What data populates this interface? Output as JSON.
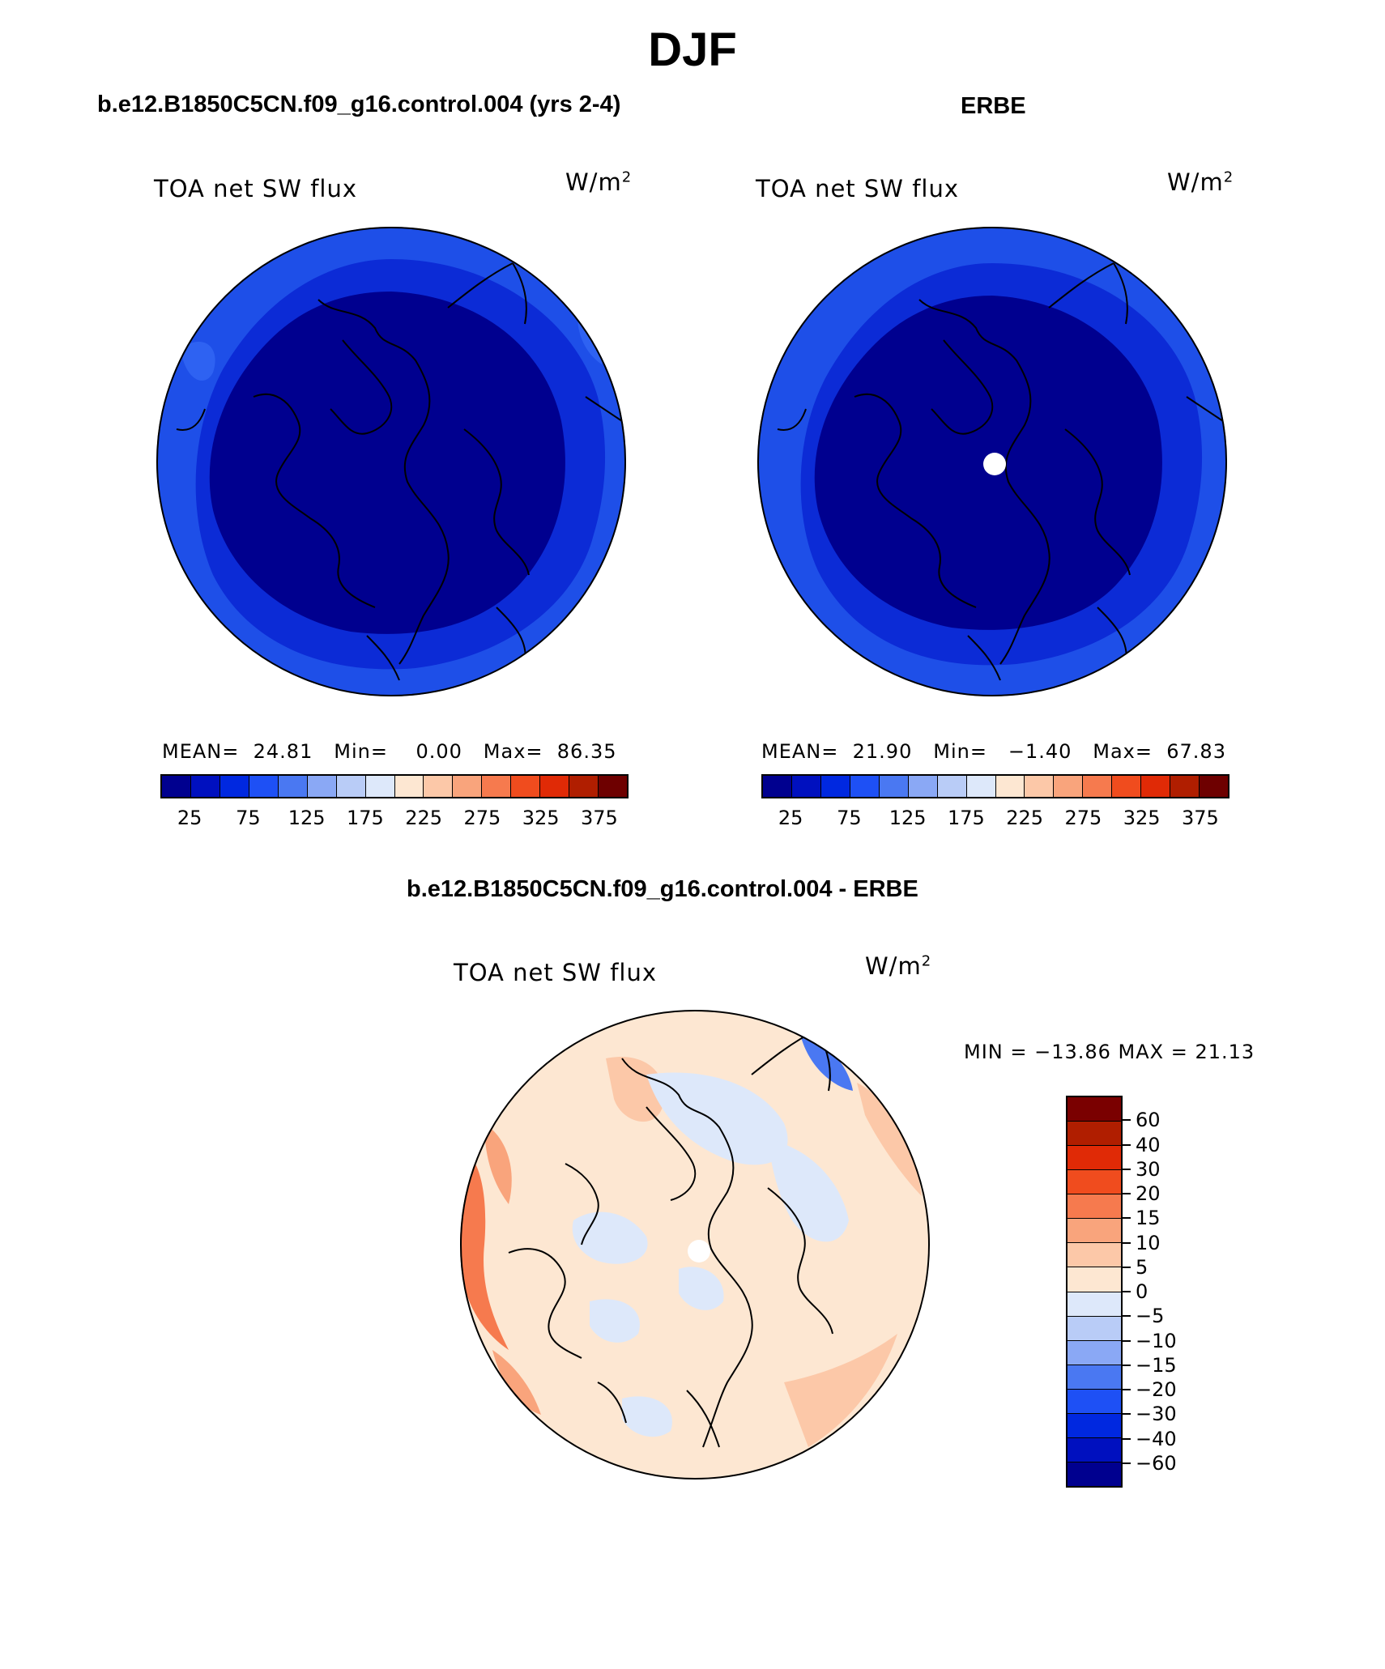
{
  "title": "DJF",
  "panels": [
    {
      "case": "b.e12.B1850C5CN.f09_g16.control.004 (yrs 2-4)",
      "variable": "TOA net SW flux",
      "units_base": "W/m",
      "units_exp": "2",
      "stats": {
        "mean_label": "MEAN=",
        "mean": "24.81",
        "min_label": "Min=",
        "min": "0.00",
        "max_label": "Max=",
        "max": "86.35"
      },
      "colorbar_labels": [
        "25",
        "75",
        "125",
        "175",
        "225",
        "275",
        "325",
        "375"
      ]
    },
    {
      "case": "ERBE",
      "variable": "TOA net SW flux",
      "units_base": "W/m",
      "units_exp": "2",
      "stats": {
        "mean_label": "MEAN=",
        "mean": "21.90",
        "min_label": "Min=",
        "min": "−1.40",
        "max_label": "Max=",
        "max": "67.83"
      },
      "colorbar_labels": [
        "25",
        "75",
        "125",
        "175",
        "225",
        "275",
        "325",
        "375"
      ]
    }
  ],
  "diff": {
    "case": "b.e12.B1850C5CN.f09_g16.control.004 - ERBE",
    "variable": "TOA net SW flux",
    "units_base": "W/m",
    "units_exp": "2",
    "minmax": "MIN = −13.86 MAX =  21.13",
    "colorbar_labels": [
      "60",
      "40",
      "30",
      "20",
      "15",
      "10",
      "5",
      "0",
      "−5",
      "−10",
      "−15",
      "−20",
      "−30",
      "−40",
      "−60"
    ]
  },
  "colors": {
    "seq": [
      "#00008f",
      "#0010bf",
      "#0028e0",
      "#1e50f5",
      "#4a78f2",
      "#8aa8f5",
      "#b9ccf7",
      "#dde8fa",
      "#fde7d2",
      "#fcc8a8",
      "#f9a47c",
      "#f67a4e",
      "#f04c1e",
      "#e02a06",
      "#b01e00",
      "#6e0000"
    ],
    "div": [
      "#7a0000",
      "#b01e00",
      "#e02a06",
      "#f04c1e",
      "#f67a4e",
      "#f9a47c",
      "#fcc8a8",
      "#fde7d2",
      "#dde8fa",
      "#b9ccf7",
      "#8aa8f5",
      "#4a78f2",
      "#1e50f5",
      "#0028e0",
      "#0010bf",
      "#00008f"
    ]
  }
}
